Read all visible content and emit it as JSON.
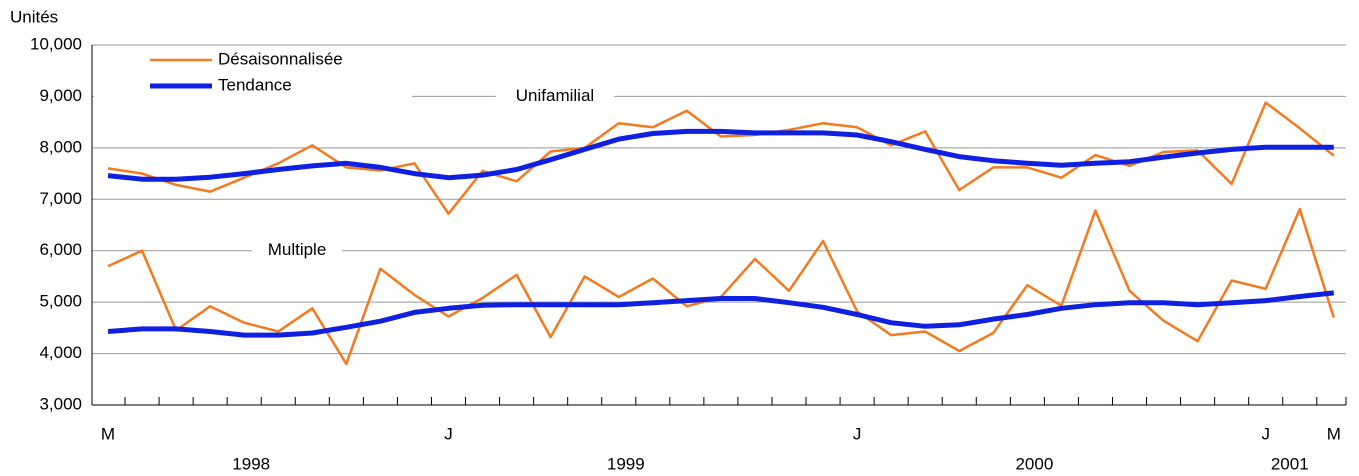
{
  "chart_data": {
    "type": "line",
    "y_label": "Unités",
    "ylim": [
      3000,
      10000
    ],
    "yticks": [
      {
        "value": 3000,
        "label": "3,000"
      },
      {
        "value": 4000,
        "label": "4,000"
      },
      {
        "value": 5000,
        "label": "5,000"
      },
      {
        "value": 6000,
        "label": "6,000"
      },
      {
        "value": 7000,
        "label": "7,000"
      },
      {
        "value": 8000,
        "label": "8,000"
      },
      {
        "value": 9000,
        "label": "9,000"
      },
      {
        "value": 10000,
        "label": "10,000"
      }
    ],
    "grid": true,
    "categories": [
      "M",
      null,
      null,
      null,
      null,
      null,
      null,
      null,
      null,
      null,
      "J",
      null,
      null,
      null,
      null,
      null,
      null,
      null,
      null,
      null,
      null,
      null,
      "J",
      null,
      null,
      null,
      null,
      null,
      null,
      null,
      null,
      null,
      null,
      null,
      "J",
      null,
      "M"
    ],
    "year_labels": [
      "1998",
      "1999",
      "2000",
      "2001"
    ],
    "legend_position": "upper left",
    "groups": [
      {
        "label": "Unifamilial",
        "series": [
          {
            "name": "Désaisonnalisée",
            "color": "#f47a20",
            "width": 2.5,
            "values": [
              7600,
              7500,
              7280,
              7150,
              7420,
              7700,
              8050,
              7620,
              7560,
              7700,
              6720,
              7550,
              7350,
              7930,
              8000,
              8480,
              8400,
              8720,
              8220,
              8250,
              8350,
              8480,
              8400,
              8050,
              8320,
              7180,
              7620,
              7620,
              7420,
              7860,
              7650,
              7920,
              7950,
              7300,
              8880,
              8380,
              7850
            ]
          },
          {
            "name": "Tendance",
            "color": "#1020e0",
            "width": 5,
            "values": [
              7460,
              7390,
              7390,
              7430,
              7500,
              7580,
              7650,
              7700,
              7620,
              7500,
              7420,
              7470,
              7580,
              7770,
              7970,
              8170,
              8280,
              8320,
              8320,
              8290,
              8290,
              8290,
              8250,
              8120,
              7970,
              7830,
              7750,
              7700,
              7660,
              7700,
              7730,
              7820,
              7900,
              7970,
              8010,
              8010,
              8010
            ]
          }
        ]
      },
      {
        "label": "Multiple",
        "series": [
          {
            "name": "Désaisonnalisée",
            "color": "#f47a20",
            "width": 2.5,
            "values": [
              5700,
              6000,
              4450,
              4920,
              4600,
              4430,
              4880,
              3800,
              5650,
              5140,
              4720,
              5080,
              5530,
              4320,
              5500,
              5100,
              5460,
              4920,
              5100,
              5840,
              5220,
              6190,
              4820,
              4360,
              4430,
              4050,
              4400,
              5330,
              4930,
              6780,
              5220,
              4640,
              4240,
              5420,
              5260,
              6810,
              4700
            ]
          },
          {
            "name": "Tendance",
            "color": "#1020e0",
            "width": 5,
            "values": [
              4430,
              4480,
              4480,
              4430,
              4360,
              4360,
              4400,
              4510,
              4630,
              4800,
              4880,
              4940,
              4950,
              4950,
              4950,
              4950,
              4990,
              5030,
              5070,
              5070,
              4990,
              4900,
              4760,
              4600,
              4530,
              4560,
              4670,
              4760,
              4880,
              4950,
              4990,
              4990,
              4950,
              4990,
              5030,
              5110,
              5180
            ]
          }
        ]
      }
    ]
  }
}
